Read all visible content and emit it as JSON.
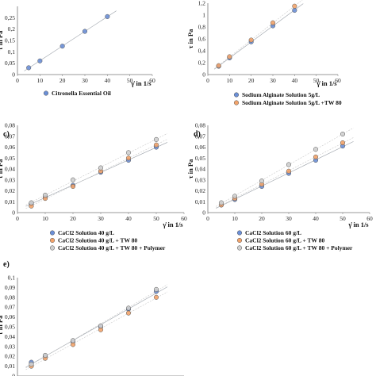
{
  "chart_data": [
    {
      "type": "scatter",
      "panel_label": "",
      "xlabel": "γ̇ in 1/s",
      "ylabel": "τ in Pa",
      "xlim": [
        0,
        60
      ],
      "ylim": [
        0,
        0.3
      ],
      "xticks": [
        "0",
        "10",
        "20",
        "30",
        "40",
        "50",
        "60"
      ],
      "yticks": [
        "0",
        "0,05",
        "0,1",
        "0,15",
        "0,2",
        "0,25"
      ],
      "legend_position": "bottom",
      "series": [
        {
          "name": "Citronella Essential Oil",
          "color": "#6b8fd6",
          "x": [
            5,
            10,
            20,
            30,
            40
          ],
          "y": [
            0.03,
            0.06,
            0.125,
            0.19,
            0.255
          ]
        }
      ]
    },
    {
      "type": "scatter",
      "panel_label": "",
      "xlabel": "γ̇ in 1/s",
      "ylabel": "τ in Pa",
      "xlim": [
        0,
        60
      ],
      "ylim": [
        0,
        1.2
      ],
      "xticks": [
        "0",
        "10",
        "20",
        "30",
        "40",
        "50",
        "60"
      ],
      "yticks": [
        "0",
        "0,2",
        "0,4",
        "0,6",
        "0,8",
        "1",
        "1,2"
      ],
      "legend_position": "bottom",
      "series": [
        {
          "name": "Sodium Alginate Solution 5g/L",
          "color": "#6b8fd6",
          "x": [
            5,
            10,
            20,
            30,
            40
          ],
          "y": [
            0.14,
            0.28,
            0.55,
            0.82,
            1.08
          ]
        },
        {
          "name": "Sodium Alginate Solution 5g/L +TW 80",
          "color": "#f2a36a",
          "x": [
            5,
            10,
            20,
            30,
            40
          ],
          "y": [
            0.15,
            0.3,
            0.58,
            0.87,
            1.15
          ]
        }
      ]
    },
    {
      "type": "scatter",
      "panel_label": "c)",
      "xlabel": "γ̇ in 1/s",
      "ylabel": "τ in Pa",
      "xlim": [
        0,
        60
      ],
      "ylim": [
        0,
        0.08
      ],
      "xticks": [
        "0",
        "10",
        "20",
        "30",
        "40",
        "50",
        "60"
      ],
      "yticks": [
        "0",
        "0,01",
        "0,02",
        "0,03",
        "0,04",
        "0,05",
        "0,06",
        "0,07",
        "0,08"
      ],
      "legend_position": "bottom",
      "series": [
        {
          "name": "CaCl2 Solution 40 g/L",
          "color": "#6b8fd6",
          "x": [
            5,
            10,
            20,
            30,
            40,
            50
          ],
          "y": [
            0.008,
            0.014,
            0.025,
            0.037,
            0.048,
            0.06
          ]
        },
        {
          "name": "CaCl2 Solution 40 g/L + TW 80",
          "color": "#f2a36a",
          "x": [
            5,
            10,
            20,
            30,
            40,
            50
          ],
          "y": [
            0.006,
            0.013,
            0.024,
            0.038,
            0.05,
            0.062
          ]
        },
        {
          "name": "CaCl2 Solution 40 g/L + TW 80 + Polymer",
          "color": "#cfcfcf",
          "x": [
            5,
            10,
            20,
            30,
            40,
            50
          ],
          "y": [
            0.009,
            0.016,
            0.03,
            0.041,
            0.055,
            0.067
          ]
        }
      ]
    },
    {
      "type": "scatter",
      "panel_label": "d)",
      "xlabel": "γ̇ in 1/s",
      "ylabel": "τ in Pa",
      "xlim": [
        0,
        60
      ],
      "ylim": [
        0,
        0.08
      ],
      "xticks": [
        "0",
        "10",
        "20",
        "30",
        "40",
        "50",
        "60"
      ],
      "yticks": [
        "0",
        "0,01",
        "0,02",
        "0,03",
        "0,04",
        "0,05",
        "0,06",
        "0,07",
        "0,08"
      ],
      "legend_position": "bottom",
      "series": [
        {
          "name": "CaCl2 Solution 60 g/L",
          "color": "#6b8fd6",
          "x": [
            5,
            10,
            20,
            30,
            40,
            50
          ],
          "y": [
            0.007,
            0.012,
            0.024,
            0.036,
            0.048,
            0.061
          ]
        },
        {
          "name": "CaCl2 Solution 60 g/L + TW 80",
          "color": "#f2a36a",
          "x": [
            5,
            10,
            20,
            30,
            40,
            50
          ],
          "y": [
            0.007,
            0.013,
            0.026,
            0.038,
            0.051,
            0.064
          ]
        },
        {
          "name": "CaCl2 Solution 60 g/L + TW 80 + Polymer",
          "color": "#cfcfcf",
          "x": [
            5,
            10,
            20,
            30,
            40,
            50
          ],
          "y": [
            0.009,
            0.015,
            0.029,
            0.044,
            0.058,
            0.072
          ]
        }
      ]
    },
    {
      "type": "scatter",
      "panel_label": "e)",
      "xlabel": "",
      "ylabel": "τ in Pa",
      "xlim": [
        0,
        60
      ],
      "ylim": [
        0,
        0.1
      ],
      "xticks": [],
      "yticks": [
        "0",
        "0,01",
        "0,02",
        "0,03",
        "0,04",
        "0,05",
        "0,06",
        "0,07",
        "0,08",
        "0,09",
        "0,1"
      ],
      "legend_position": "",
      "series": [
        {
          "name": "",
          "color": "#6b8fd6",
          "x": [
            5,
            10,
            20,
            30,
            40,
            50
          ],
          "y": [
            0.014,
            0.02,
            0.035,
            0.05,
            0.068,
            0.086
          ]
        },
        {
          "name": "",
          "color": "#f2a36a",
          "x": [
            5,
            10,
            20,
            30,
            40,
            50
          ],
          "y": [
            0.01,
            0.018,
            0.032,
            0.047,
            0.064,
            0.08
          ]
        },
        {
          "name": "",
          "color": "#cfcfcf",
          "x": [
            5,
            10,
            20,
            30,
            40,
            50
          ],
          "y": [
            0.012,
            0.021,
            0.036,
            0.051,
            0.069,
            0.088
          ]
        }
      ]
    }
  ]
}
